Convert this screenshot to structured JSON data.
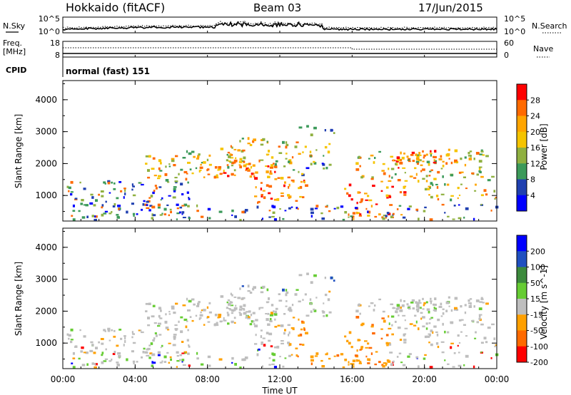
{
  "header": {
    "site": "Hokkaido (fitACF)",
    "beam": "Beam 03",
    "date": "17/Jun/2015"
  },
  "strip": {
    "nsky_label": "N.Sky",
    "nsky_ticks": [
      "10^5",
      "10^0"
    ],
    "nsearch_label": "N.Search",
    "nsearch_ticks": [
      "10^5",
      "10^0"
    ],
    "freq_label": "Freq.",
    "freq_unit": "[MHz]",
    "freq_ticks": [
      "18",
      "8"
    ],
    "nave_label": "Nave",
    "nave_ticks": [
      "60",
      "0"
    ],
    "cpid_label": "CPID",
    "cpid_text": "normal (fast) 151"
  },
  "chart_data": [
    {
      "type": "heatmap",
      "name": "power",
      "ylabel": "Slant Range [km]",
      "yticks": [
        1000,
        2000,
        3000,
        4000
      ],
      "ylim": [
        200,
        4600
      ],
      "colorbar": {
        "label": "Power [dB]",
        "ticks": [
          "28",
          "24",
          "20",
          "16",
          "12",
          "8",
          "4"
        ],
        "colors": [
          "#ff0000",
          "#ff6a00",
          "#ffa500",
          "#f5c400",
          "#8fb040",
          "#3c9a5a",
          "#2040b0",
          "#0000ff"
        ]
      }
    },
    {
      "type": "heatmap",
      "name": "velocity",
      "ylabel": "Slant Range [km]",
      "yticks": [
        1000,
        2000,
        3000,
        4000
      ],
      "ylim": [
        200,
        4600
      ],
      "colorbar": {
        "label": "Velocity [m s^-1]",
        "ticks": [
          "200",
          "100",
          "50",
          "15",
          "-15",
          "-50",
          "-100",
          "-200"
        ],
        "colors": [
          "#0000ff",
          "#2050c0",
          "#3c8a3c",
          "#66cc33",
          "#bebebe",
          "#ffa000",
          "#ff6a00",
          "#ff0000"
        ]
      }
    }
  ],
  "xaxis": {
    "label": "Time UT",
    "ticks": [
      "00:00",
      "04:00",
      "08:00",
      "12:00",
      "16:00",
      "20:00",
      "00:00"
    ]
  }
}
